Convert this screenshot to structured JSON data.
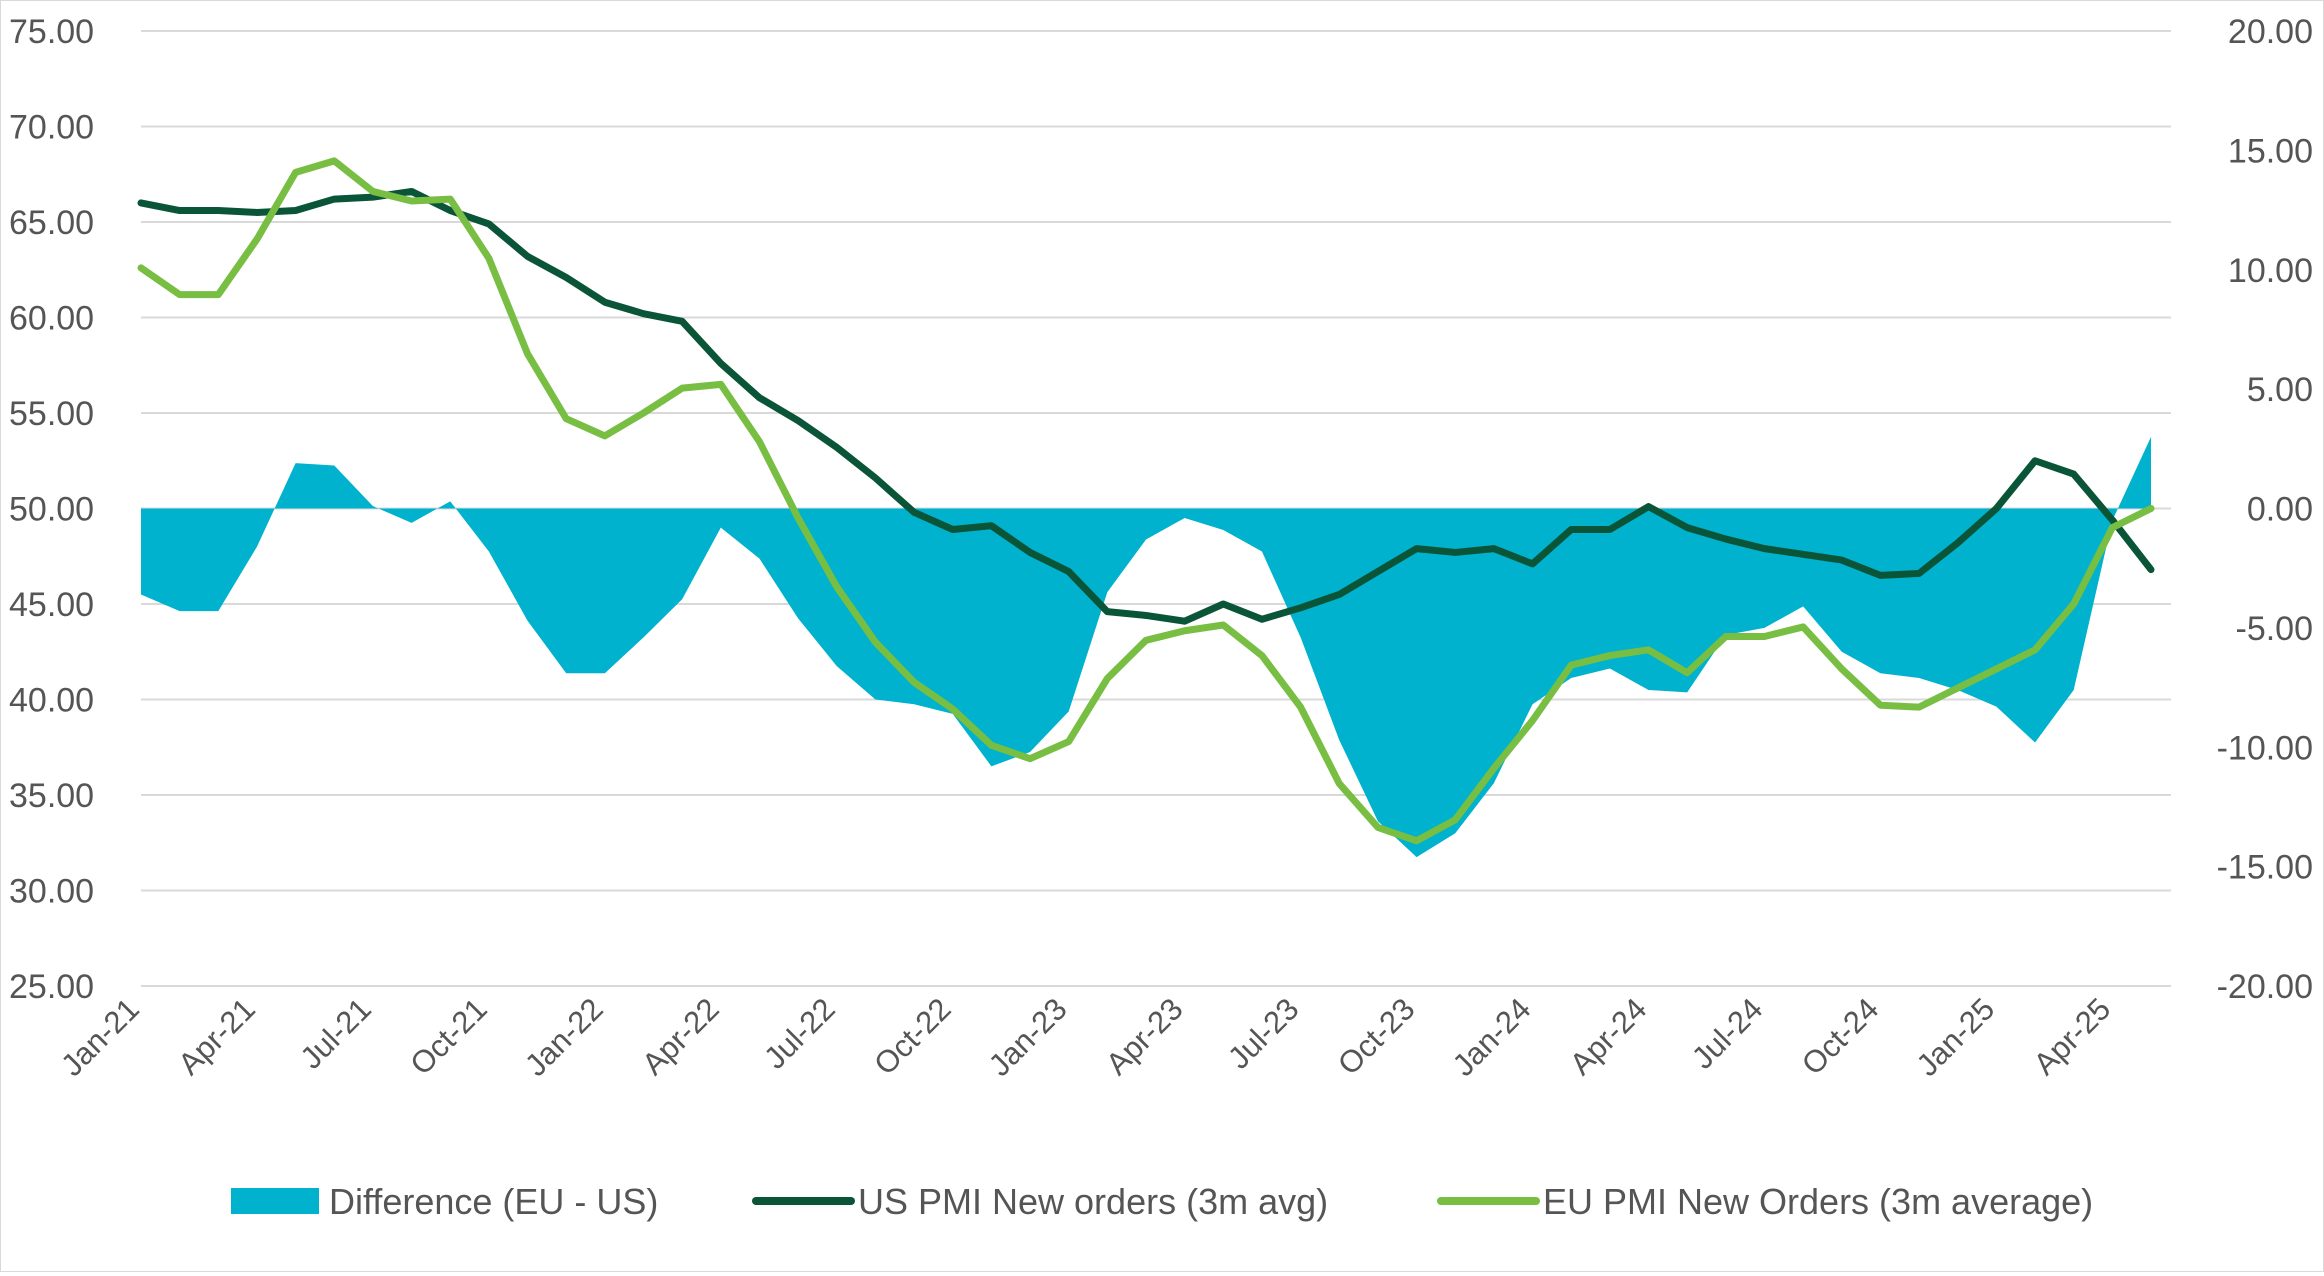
{
  "chart_data": {
    "type": "line",
    "title": "",
    "xlabel": "",
    "ylabel_left": "",
    "ylabel_right": "",
    "left_axis": {
      "min": 25,
      "max": 75,
      "step": 5,
      "tick_labels": [
        "75.00",
        "70.00",
        "65.00",
        "60.00",
        "55.00",
        "50.00",
        "45.00",
        "40.00",
        "35.00",
        "30.00",
        "25.00"
      ]
    },
    "right_axis": {
      "min": -20,
      "max": 20,
      "step": 5,
      "tick_labels": [
        "20.00",
        "15.00",
        "10.00",
        "5.00",
        "0.00",
        "-5.00",
        "-10.00",
        "-15.00",
        "-20.00"
      ]
    },
    "x_tick_labels": [
      "Jan-21",
      "Apr-21",
      "Jul-21",
      "Oct-21",
      "Jan-22",
      "Apr-22",
      "Jul-22",
      "Oct-22",
      "Jan-23",
      "Apr-23",
      "Jul-23",
      "Oct-23",
      "Jan-24",
      "Apr-24",
      "Jul-24",
      "Oct-24",
      "Jan-25",
      "Apr-25"
    ],
    "grid": "horizontal",
    "legend_position": "bottom",
    "series": [
      {
        "name": "Difference (EU - US)",
        "type": "area",
        "axis": "right",
        "color": "#00b2cd",
        "values": [
          -3.6,
          -4.3,
          -4.3,
          -1.6,
          1.9,
          1.8,
          0.1,
          -0.6,
          0.3,
          -1.8,
          -4.7,
          -6.9,
          -6.9,
          -5.4,
          -3.8,
          -0.8,
          -2.1,
          -4.6,
          -6.6,
          -8.0,
          -8.2,
          -8.6,
          -10.8,
          -10.2,
          -8.5,
          -3.5,
          -1.3,
          -0.4,
          -0.9,
          -1.8,
          -5.4,
          -9.7,
          -13.1,
          -14.6,
          -13.6,
          -11.5,
          -8.2,
          -7.1,
          -6.7,
          -7.6,
          -7.7,
          -5.3,
          -5.0,
          -4.1,
          -6.0,
          -6.9,
          -7.1,
          -7.6,
          -8.3,
          -9.8,
          -7.6,
          -0.5,
          3.0
        ]
      },
      {
        "name": "US PMI New orders (3m avg)",
        "type": "line",
        "axis": "left",
        "color": "#0a5538",
        "values": [
          66.0,
          65.6,
          65.6,
          65.5,
          65.6,
          66.2,
          66.3,
          66.6,
          65.6,
          64.9,
          63.2,
          62.1,
          60.8,
          60.2,
          59.8,
          57.6,
          55.8,
          54.6,
          53.2,
          51.6,
          49.8,
          48.9,
          49.1,
          47.7,
          46.7,
          44.6,
          44.4,
          44.1,
          45.0,
          44.2,
          44.8,
          45.5,
          46.7,
          47.9,
          47.7,
          47.9,
          47.1,
          48.9,
          48.9,
          50.1,
          49.0,
          48.4,
          47.9,
          47.6,
          47.3,
          46.5,
          46.6,
          48.2,
          50.0,
          52.5,
          51.8,
          49.4,
          46.8
        ]
      },
      {
        "name": "EU PMI New Orders (3m average)",
        "type": "line",
        "axis": "left",
        "color": "#78be43",
        "values": [
          62.6,
          61.2,
          61.2,
          64.1,
          67.6,
          68.2,
          66.6,
          66.1,
          66.2,
          63.1,
          58.1,
          54.7,
          53.8,
          55.0,
          56.3,
          56.5,
          53.5,
          49.5,
          45.9,
          43.0,
          40.9,
          39.5,
          37.6,
          36.9,
          37.8,
          41.1,
          43.1,
          43.6,
          43.9,
          42.3,
          39.6,
          35.6,
          33.3,
          32.6,
          33.7,
          36.4,
          38.9,
          41.8,
          42.3,
          42.6,
          41.4,
          43.3,
          43.3,
          43.8,
          41.6,
          39.7,
          39.6,
          40.6,
          41.6,
          42.6,
          45.0,
          49.0,
          50.0
        ]
      }
    ]
  }
}
